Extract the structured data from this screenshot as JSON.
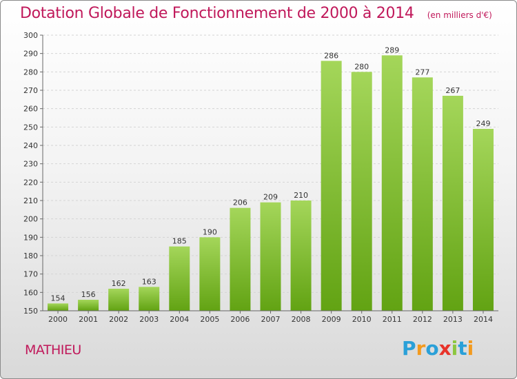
{
  "header": {
    "title": "Dotation Globale de Fonctionnement de 2000 à 2014",
    "subtitle": "(en milliers d'€)"
  },
  "commune": "MATHIEU",
  "logo": {
    "text": "Proxiti",
    "letter_colors": [
      "#2aa0d8",
      "#f39a1e",
      "#2aa0d8",
      "#e8332a",
      "#8cc63f",
      "#2aa0d8",
      "#f39a1e"
    ]
  },
  "colors": {
    "bar_light": "#a4d65a",
    "bar_dark": "#62a313",
    "title": "#c0185a"
  },
  "chart_data": {
    "type": "bar",
    "categories": [
      "2000",
      "2001",
      "2002",
      "2003",
      "2004",
      "2005",
      "2006",
      "2007",
      "2008",
      "2009",
      "2010",
      "2011",
      "2012",
      "2013",
      "2014"
    ],
    "values": [
      154,
      156,
      162,
      163,
      185,
      190,
      206,
      209,
      210,
      286,
      280,
      289,
      277,
      267,
      249
    ],
    "ylim": [
      150,
      300
    ],
    "yticks": [
      150,
      160,
      170,
      180,
      190,
      200,
      210,
      220,
      230,
      240,
      250,
      260,
      270,
      280,
      290,
      300
    ],
    "grid": true,
    "data_labels": true
  }
}
